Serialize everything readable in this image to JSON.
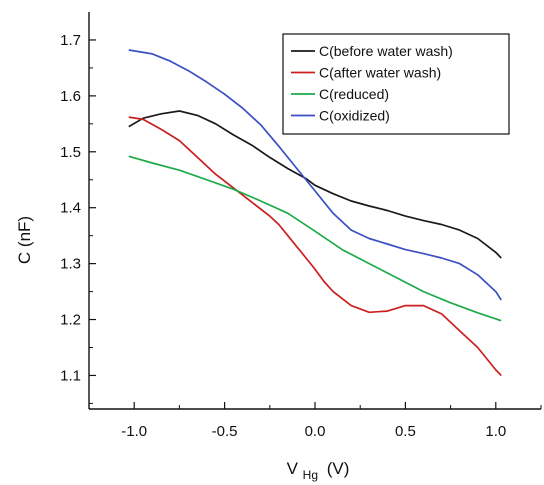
{
  "chart_data": {
    "type": "line",
    "xlabel": "V",
    "xlabel_subscript": "Hg",
    "xlabel_unit": "(V)",
    "ylabel": "C (nF)",
    "xlim": [
      -1.25,
      1.25
    ],
    "ylim": [
      1.04,
      1.75
    ],
    "x_ticks": [
      -1.0,
      -0.5,
      0.0,
      0.5,
      1.0
    ],
    "x_tick_labels": [
      "-1.0",
      "-0.5",
      "0.0",
      "0.5",
      "1.0"
    ],
    "y_ticks": [
      1.1,
      1.2,
      1.3,
      1.4,
      1.5,
      1.6,
      1.7
    ],
    "y_tick_labels": [
      "1.1",
      "1.2",
      "1.3",
      "1.4",
      "1.5",
      "1.6",
      "1.7"
    ],
    "legend_position": "top-right",
    "grid": false,
    "series": [
      {
        "name": "C(before water wash)",
        "color": "#1a1a1a",
        "points": [
          [
            -1.03,
            1.545
          ],
          [
            -0.95,
            1.56
          ],
          [
            -0.85,
            1.568
          ],
          [
            -0.75,
            1.573
          ],
          [
            -0.65,
            1.565
          ],
          [
            -0.55,
            1.55
          ],
          [
            -0.45,
            1.53
          ],
          [
            -0.35,
            1.512
          ],
          [
            -0.25,
            1.49
          ],
          [
            -0.15,
            1.47
          ],
          [
            -0.05,
            1.452
          ],
          [
            0.0,
            1.44
          ],
          [
            0.1,
            1.425
          ],
          [
            0.2,
            1.412
          ],
          [
            0.3,
            1.403
          ],
          [
            0.4,
            1.395
          ],
          [
            0.5,
            1.385
          ],
          [
            0.6,
            1.377
          ],
          [
            0.7,
            1.37
          ],
          [
            0.8,
            1.36
          ],
          [
            0.9,
            1.345
          ],
          [
            1.0,
            1.32
          ],
          [
            1.03,
            1.31
          ]
        ]
      },
      {
        "name": "C(after water wash)",
        "color": "#cc1f1f",
        "points": [
          [
            -1.03,
            1.562
          ],
          [
            -0.95,
            1.558
          ],
          [
            -0.85,
            1.54
          ],
          [
            -0.75,
            1.52
          ],
          [
            -0.65,
            1.49
          ],
          [
            -0.55,
            1.46
          ],
          [
            -0.45,
            1.435
          ],
          [
            -0.35,
            1.41
          ],
          [
            -0.25,
            1.385
          ],
          [
            -0.2,
            1.37
          ],
          [
            -0.15,
            1.35
          ],
          [
            -0.1,
            1.33
          ],
          [
            -0.05,
            1.31
          ],
          [
            0.0,
            1.29
          ],
          [
            0.05,
            1.268
          ],
          [
            0.1,
            1.25
          ],
          [
            0.2,
            1.225
          ],
          [
            0.3,
            1.213
          ],
          [
            0.4,
            1.215
          ],
          [
            0.5,
            1.225
          ],
          [
            0.6,
            1.225
          ],
          [
            0.7,
            1.21
          ],
          [
            0.8,
            1.18
          ],
          [
            0.9,
            1.15
          ],
          [
            1.0,
            1.11
          ],
          [
            1.03,
            1.1
          ]
        ]
      },
      {
        "name": "C(reduced)",
        "color": "#1faa4a",
        "points": [
          [
            -1.03,
            1.492
          ],
          [
            -0.9,
            1.48
          ],
          [
            -0.75,
            1.467
          ],
          [
            -0.6,
            1.45
          ],
          [
            -0.45,
            1.433
          ],
          [
            -0.3,
            1.412
          ],
          [
            -0.15,
            1.39
          ],
          [
            0.0,
            1.358
          ],
          [
            0.15,
            1.325
          ],
          [
            0.3,
            1.3
          ],
          [
            0.45,
            1.275
          ],
          [
            0.6,
            1.25
          ],
          [
            0.75,
            1.23
          ],
          [
            0.9,
            1.212
          ],
          [
            1.03,
            1.198
          ]
        ]
      },
      {
        "name": "C(oxidized)",
        "color": "#3b4fc4",
        "points": [
          [
            -1.03,
            1.682
          ],
          [
            -0.9,
            1.675
          ],
          [
            -0.8,
            1.662
          ],
          [
            -0.7,
            1.645
          ],
          [
            -0.6,
            1.625
          ],
          [
            -0.5,
            1.603
          ],
          [
            -0.4,
            1.578
          ],
          [
            -0.3,
            1.548
          ],
          [
            -0.2,
            1.51
          ],
          [
            -0.1,
            1.47
          ],
          [
            0.0,
            1.43
          ],
          [
            0.1,
            1.39
          ],
          [
            0.2,
            1.36
          ],
          [
            0.3,
            1.345
          ],
          [
            0.4,
            1.335
          ],
          [
            0.5,
            1.325
          ],
          [
            0.6,
            1.318
          ],
          [
            0.7,
            1.31
          ],
          [
            0.8,
            1.3
          ],
          [
            0.9,
            1.28
          ],
          [
            1.0,
            1.25
          ],
          [
            1.03,
            1.235
          ]
        ]
      }
    ]
  }
}
